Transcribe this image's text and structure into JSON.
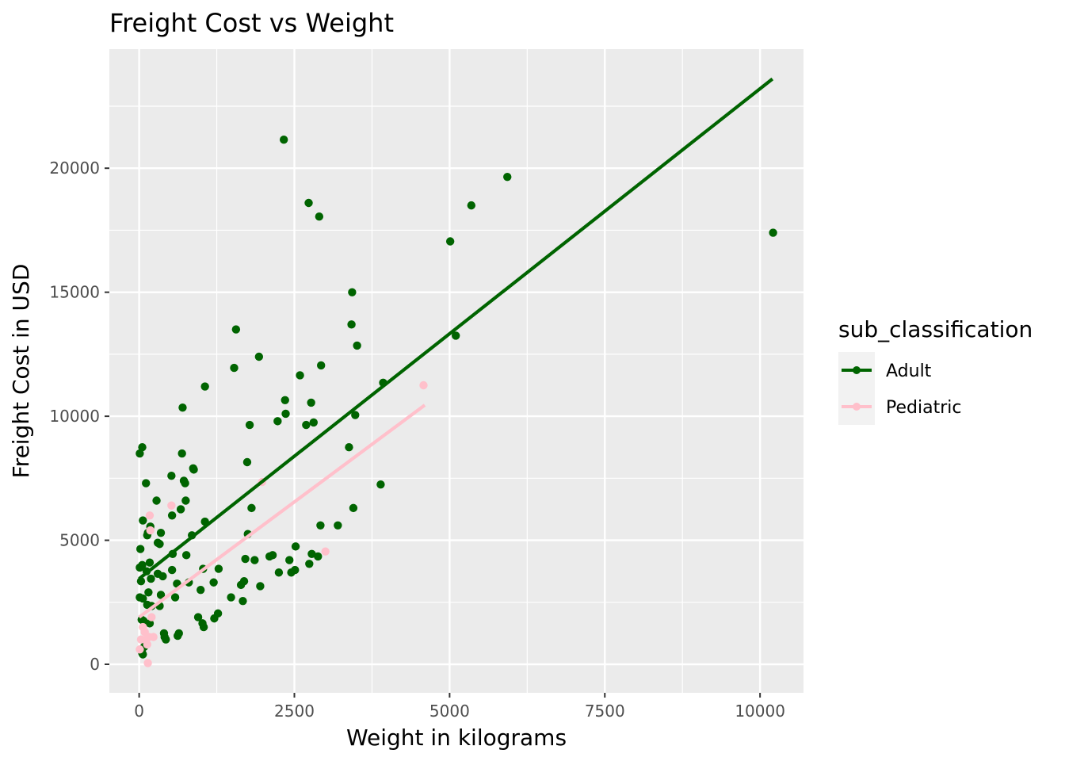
{
  "chart_data": {
    "type": "scatter",
    "title": "Freight Cost vs Weight",
    "xlabel": "Weight in kilograms",
    "ylabel": "Freight Cost in USD",
    "xlim": [
      -480,
      10700
    ],
    "ylim": [
      -1150,
      24800
    ],
    "x_ticks": [
      0,
      2500,
      5000,
      7500,
      10000
    ],
    "y_ticks": [
      0,
      5000,
      10000,
      15000,
      20000
    ],
    "grid": true,
    "legend": {
      "title": "sub_classification",
      "position": "right"
    },
    "series": [
      {
        "name": "Adult",
        "color": "#006400",
        "fit_line": [
          [
            0,
            3450
          ],
          [
            10200,
            23600
          ]
        ],
        "points": [
          [
            10,
            8500
          ],
          [
            50,
            8750
          ],
          [
            20,
            4650
          ],
          [
            10,
            3900
          ],
          [
            50,
            4000
          ],
          [
            30,
            3350
          ],
          [
            10,
            2700
          ],
          [
            60,
            2650
          ],
          [
            40,
            1800
          ],
          [
            70,
            1750
          ],
          [
            50,
            450
          ],
          [
            60,
            400
          ],
          [
            80,
            700
          ],
          [
            100,
            900
          ],
          [
            60,
            5800
          ],
          [
            110,
            7300
          ],
          [
            130,
            5200
          ],
          [
            140,
            5300
          ],
          [
            180,
            5550
          ],
          [
            170,
            4100
          ],
          [
            120,
            3750
          ],
          [
            190,
            3450
          ],
          [
            150,
            2900
          ],
          [
            130,
            2400
          ],
          [
            200,
            2350
          ],
          [
            170,
            1650
          ],
          [
            280,
            6600
          ],
          [
            300,
            4900
          ],
          [
            350,
            5300
          ],
          [
            330,
            4850
          ],
          [
            300,
            3650
          ],
          [
            380,
            3550
          ],
          [
            350,
            2800
          ],
          [
            330,
            2350
          ],
          [
            400,
            1250
          ],
          [
            410,
            1100
          ],
          [
            430,
            1000
          ],
          [
            520,
            7600
          ],
          [
            530,
            6000
          ],
          [
            540,
            4450
          ],
          [
            530,
            3800
          ],
          [
            580,
            2700
          ],
          [
            610,
            3250
          ],
          [
            620,
            1150
          ],
          [
            640,
            1250
          ],
          [
            670,
            6250
          ],
          [
            690,
            8500
          ],
          [
            700,
            10350
          ],
          [
            720,
            7400
          ],
          [
            740,
            7300
          ],
          [
            750,
            6600
          ],
          [
            760,
            4400
          ],
          [
            800,
            3300
          ],
          [
            850,
            5200
          ],
          [
            870,
            7900
          ],
          [
            880,
            7850
          ],
          [
            950,
            1900
          ],
          [
            990,
            3000
          ],
          [
            1020,
            1650
          ],
          [
            1040,
            1500
          ],
          [
            1060,
            5750
          ],
          [
            1060,
            11200
          ],
          [
            1030,
            3850
          ],
          [
            1200,
            3300
          ],
          [
            1210,
            1850
          ],
          [
            1270,
            2050
          ],
          [
            1280,
            3850
          ],
          [
            1480,
            2700
          ],
          [
            1530,
            11950
          ],
          [
            1560,
            13500
          ],
          [
            1640,
            3200
          ],
          [
            1670,
            2550
          ],
          [
            1690,
            3350
          ],
          [
            1710,
            4250
          ],
          [
            1740,
            8150
          ],
          [
            1750,
            5250
          ],
          [
            1780,
            9650
          ],
          [
            1810,
            6300
          ],
          [
            1860,
            4200
          ],
          [
            1930,
            12400
          ],
          [
            1950,
            3150
          ],
          [
            2100,
            4350
          ],
          [
            2150,
            4400
          ],
          [
            2230,
            9800
          ],
          [
            2250,
            3700
          ],
          [
            2330,
            21150
          ],
          [
            2350,
            10650
          ],
          [
            2360,
            10100
          ],
          [
            2420,
            4200
          ],
          [
            2450,
            3700
          ],
          [
            2510,
            3800
          ],
          [
            2520,
            4750
          ],
          [
            2590,
            11650
          ],
          [
            2690,
            9650
          ],
          [
            2730,
            18600
          ],
          [
            2740,
            4050
          ],
          [
            2770,
            10550
          ],
          [
            2780,
            4450
          ],
          [
            2810,
            9750
          ],
          [
            2880,
            4350
          ],
          [
            2900,
            18050
          ],
          [
            2920,
            5600
          ],
          [
            2930,
            12050
          ],
          [
            3200,
            5600
          ],
          [
            3380,
            8750
          ],
          [
            3420,
            13700
          ],
          [
            3430,
            15000
          ],
          [
            3450,
            6300
          ],
          [
            3480,
            10050
          ],
          [
            3510,
            12850
          ],
          [
            3890,
            7250
          ],
          [
            3930,
            11350
          ],
          [
            5010,
            17050
          ],
          [
            5100,
            13250
          ],
          [
            5350,
            18500
          ],
          [
            5930,
            19650
          ],
          [
            10210,
            17400
          ]
        ]
      },
      {
        "name": "Pediatric",
        "color": "#ffc0cb",
        "fit_line": [
          [
            0,
            1900
          ],
          [
            4600,
            10450
          ]
        ],
        "points": [
          [
            10,
            600
          ],
          [
            30,
            1000
          ],
          [
            60,
            1500
          ],
          [
            90,
            1300
          ],
          [
            110,
            1000
          ],
          [
            130,
            800
          ],
          [
            140,
            50
          ],
          [
            160,
            1100
          ],
          [
            170,
            6000
          ],
          [
            180,
            5400
          ],
          [
            200,
            1900
          ],
          [
            230,
            1100
          ],
          [
            520,
            6400
          ],
          [
            1980,
            7350
          ],
          [
            3000,
            4550
          ],
          [
            4580,
            11250
          ]
        ]
      }
    ]
  }
}
